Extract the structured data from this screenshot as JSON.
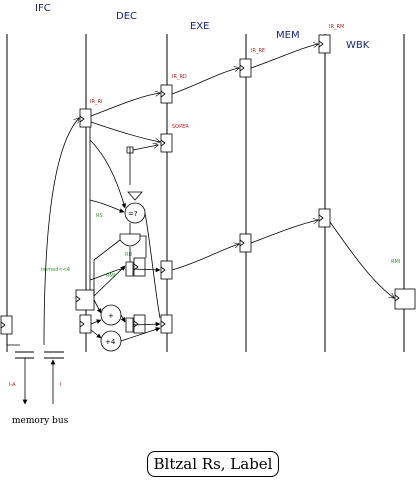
{
  "stages": [
    "IFC",
    "DEC",
    "EXE",
    "MEM",
    "WBK"
  ],
  "registers": {
    "ir_ri": "IR_RI",
    "ir_rd": "IR_RD",
    "ir_re": "IR_RE",
    "ir_rm": "IR_RM",
    "soper": "SOPER"
  },
  "signals": {
    "rs": "RS",
    "rd": "RD",
    "immed": "immed<<4",
    "rmi_dec": "RMI",
    "rmi_wbk": "RMI"
  },
  "operators": {
    "compare": "=?",
    "plus": "+",
    "plus4": "+4"
  },
  "memory": {
    "address_label": "I-A",
    "data_label": "I",
    "bus_label": "memory bus"
  },
  "title": "Bltzal Rs, Label"
}
